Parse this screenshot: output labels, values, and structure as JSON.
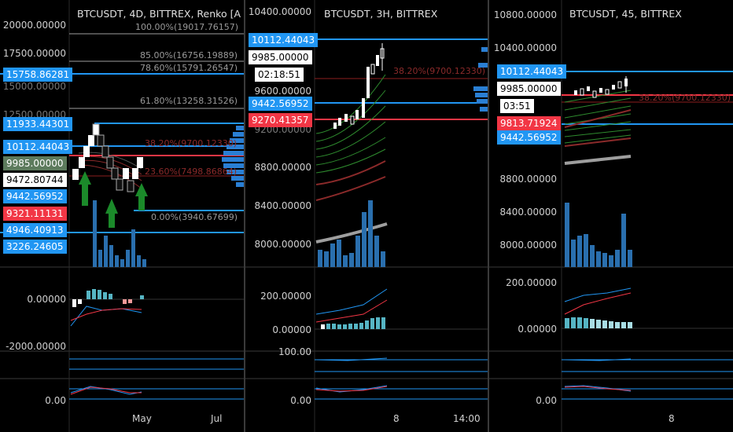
{
  "colors": {
    "blue": "#2196f3",
    "red": "#f23645",
    "green": "#1b8a2a",
    "grey": "#9e9e9e",
    "accent": "#3a8fd9"
  },
  "panel1": {
    "title": "BTCUSDT, 4D, BITTREX, Renko [A",
    "y_axis": [
      "20000.00000",
      "17500.00000",
      "15000.00000",
      "12500.00000"
    ],
    "price_tags": [
      {
        "text": "15758.86281",
        "style": "blue"
      },
      {
        "text": "11933.44301",
        "style": "blue"
      },
      {
        "text": "10112.44043",
        "style": "blue"
      },
      {
        "text": "9985.00000",
        "style": "grey"
      },
      {
        "text": "9472.80744",
        "style": "white"
      },
      {
        "text": "9442.56952",
        "style": "blue"
      },
      {
        "text": "9321.11131",
        "style": "red"
      },
      {
        "text": "4946.40913",
        "style": "blue"
      },
      {
        "text": "3226.24605",
        "style": "blue"
      }
    ],
    "fib": [
      {
        "text": "100.00%(19017.76157)"
      },
      {
        "text": "85.00%(16756.19889)"
      },
      {
        "text": "78.60%(15791.26547)"
      },
      {
        "text": "61.80%(13258.31526)"
      },
      {
        "text": "38.20%(9700.12330)"
      },
      {
        "text": "23.60%(7498.86864)"
      },
      {
        "text": "0.00%(3940.67699)"
      }
    ],
    "osc_axis": [
      "0.00000",
      "-2000.00000"
    ],
    "rsi_axis": [
      "0.00"
    ],
    "x_axis": [
      "May",
      "Jul"
    ]
  },
  "panel2": {
    "title": "BTCUSDT, 3H, BITTREX",
    "y_axis": [
      "10400.00000",
      "9600.00000",
      "9200.00000",
      "8800.00000",
      "8400.00000",
      "8000.00000"
    ],
    "price_tags": [
      {
        "text": "10112.44043",
        "style": "blue"
      },
      {
        "text": "9985.00000",
        "style": "white"
      },
      {
        "text": "02:18:51",
        "style": "white"
      },
      {
        "text": "9442.56952",
        "style": "blue"
      },
      {
        "text": "9270.41357",
        "style": "red"
      }
    ],
    "fib": [
      {
        "text": "38.20%(9700.12330)"
      }
    ],
    "osc_axis": [
      "200.00000",
      "0.00000"
    ],
    "rsi_axis": [
      "100.00",
      "0.00"
    ],
    "x_axis": [
      "8",
      "14:00"
    ]
  },
  "panel3": {
    "title": "BTCUSDT, 45, BITTREX",
    "y_axis": [
      "10800.00000",
      "10400.00000",
      "8800.00000",
      "8400.00000",
      "8000.00000"
    ],
    "price_tags": [
      {
        "text": "10112.44043",
        "style": "blue"
      },
      {
        "text": "9985.00000",
        "style": "white"
      },
      {
        "text": "03:51",
        "style": "white"
      },
      {
        "text": "9813.71924",
        "style": "red"
      },
      {
        "text": "9442.56952",
        "style": "blue"
      }
    ],
    "fib": [
      {
        "text": "38.20%(9700.12330)"
      }
    ],
    "osc_axis": [
      "200.00000",
      "0.00000"
    ],
    "rsi_axis": [
      "0.00"
    ],
    "x_axis": [
      "8"
    ]
  }
}
